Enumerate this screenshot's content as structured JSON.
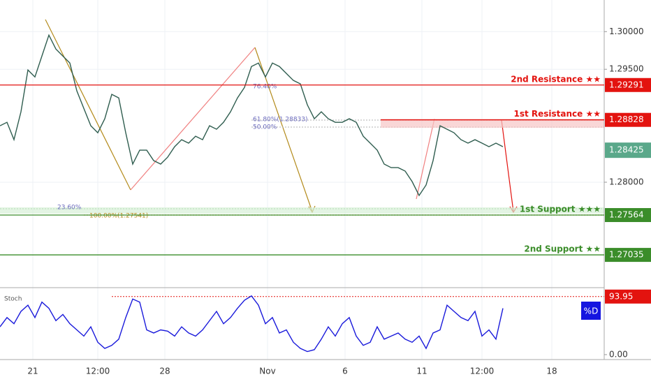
{
  "chart_data": [
    {
      "type": "line",
      "color": "#2f5d4f",
      "xlim": [
        0,
        86.5
      ],
      "ylim": [
        1.266,
        1.3042
      ],
      "xticks": [
        {
          "value": 4.7,
          "label": "21"
        },
        {
          "value": 14,
          "label": "12:00"
        },
        {
          "value": 23.6,
          "label": "28"
        },
        {
          "value": 38.3,
          "label": "Nov"
        },
        {
          "value": 49.4,
          "label": "6"
        },
        {
          "value": 60.4,
          "label": "11"
        },
        {
          "value": 69,
          "label": "12:00"
        },
        {
          "value": 79,
          "label": "18"
        }
      ],
      "yticks": [
        {
          "value": 1.3,
          "label": "1.30000"
        },
        {
          "value": 1.295,
          "label": "1.29500"
        },
        {
          "value": 1.28,
          "label": "1.28000"
        }
      ],
      "grid": true,
      "values": [
        1.2875,
        1.28796,
        1.28565,
        1.28935,
        1.29491,
        1.29398,
        1.29676,
        1.29954,
        1.29769,
        1.29676,
        1.29583,
        1.29213,
        1.28981,
        1.2875,
        1.28657,
        1.28843,
        1.29167,
        1.2912,
        1.28657,
        1.28241,
        1.28426,
        1.28426,
        1.28287,
        1.28241,
        1.28333,
        1.28472,
        1.28565,
        1.28519,
        1.28611,
        1.28565,
        1.2875,
        1.28704,
        1.28796,
        1.28935,
        1.2912,
        1.29259,
        1.29537,
        1.29583,
        1.29398,
        1.29583,
        1.29537,
        1.29444,
        1.29352,
        1.29306,
        1.29028,
        1.28843,
        1.28935,
        1.28843,
        1.28796,
        1.28796,
        1.28843,
        1.28796,
        1.28611,
        1.28519,
        1.28426,
        1.28241,
        1.28194,
        1.28194,
        1.28148,
        1.28009,
        1.27824,
        1.27963,
        1.28287,
        1.2875,
        1.28704,
        1.28657,
        1.28565,
        1.28519,
        1.28565,
        1.28519,
        1.28472,
        1.28519,
        1.28472
      ],
      "last_price": 1.28425,
      "levels": [
        {
          "name": "2nd Resistance ★★",
          "value": 1.29291,
          "color": "#e3130f"
        },
        {
          "name": "1st Resistance ★★",
          "value": 1.28828,
          "color": "#e3130f"
        },
        {
          "name": "1st Support ★★★",
          "value": 1.27564,
          "color": "#3b8d2a"
        },
        {
          "name": "2nd Support ★★",
          "value": 1.27035,
          "color": "#3b8d2a"
        }
      ],
      "annotations": [
        "76.40%",
        "61.80%(1.28833)",
        "50.00%",
        "23.60%",
        "100.00%(1.27541)"
      ]
    },
    {
      "type": "line",
      "title": "Stoch",
      "legend": "%D",
      "color": "#1a1adb",
      "ylim": [
        -8,
        105
      ],
      "yticks": [
        {
          "value": 0,
          "label": "0.00"
        }
      ],
      "marker": 93.95,
      "values": [
        45,
        60,
        50,
        70,
        80,
        60,
        85,
        75,
        55,
        65,
        50,
        40,
        30,
        45,
        20,
        10,
        15,
        25,
        60,
        90,
        85,
        40,
        35,
        40,
        38,
        30,
        45,
        35,
        30,
        40,
        55,
        70,
        50,
        60,
        75,
        88,
        95,
        80,
        50,
        60,
        35,
        40,
        20,
        10,
        5,
        8,
        25,
        45,
        30,
        50,
        60,
        30,
        15,
        20,
        45,
        25,
        30,
        35,
        25,
        20,
        30,
        10,
        35,
        40,
        80,
        70,
        60,
        55,
        70,
        30,
        40,
        25,
        75
      ]
    }
  ]
}
